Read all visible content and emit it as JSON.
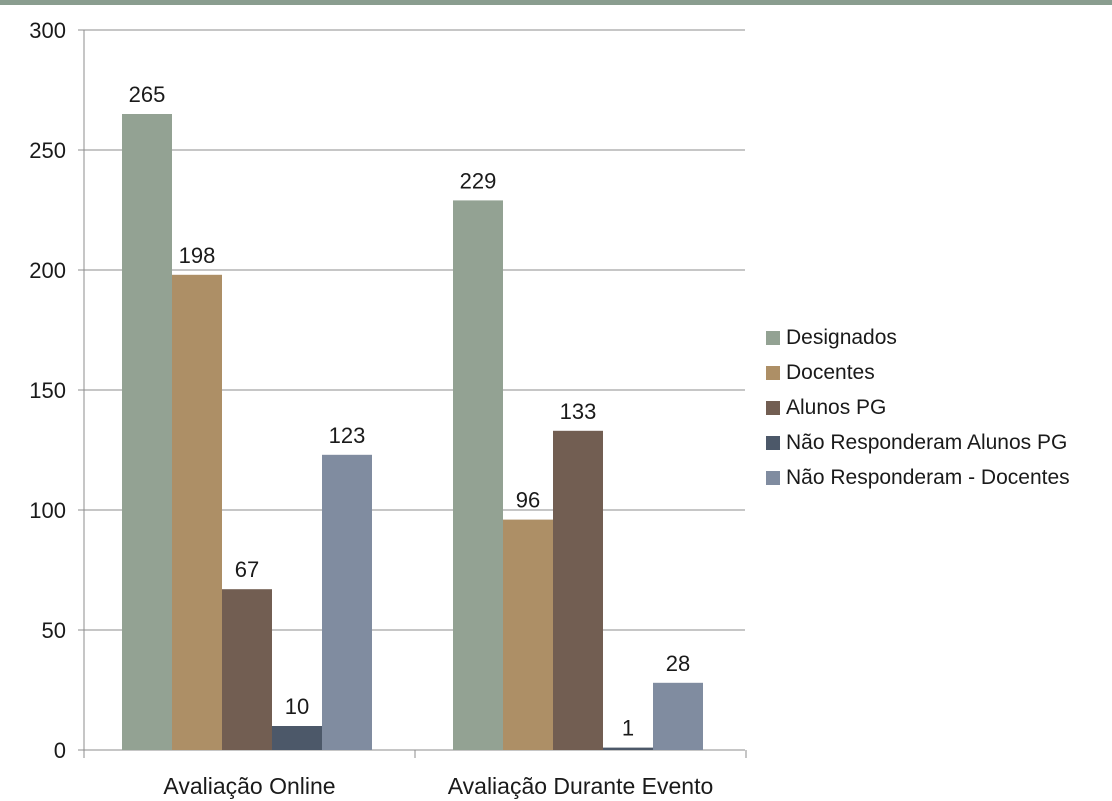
{
  "colors": {
    "band": "#8a9d8f",
    "designados": "#93a293",
    "docentes": "#ad8f66",
    "alunos": "#725e52",
    "nao_alunos": "#4c5869",
    "nao_docentes": "#808ca0",
    "grid": "#8c8c8c",
    "text": "#1a1a1a"
  },
  "chart_data": {
    "type": "bar",
    "title": "",
    "xlabel": "",
    "ylabel": "",
    "categories": [
      "Avaliação Online",
      "Avaliação Durante Evento"
    ],
    "ylim": [
      0,
      300
    ],
    "yticks": [
      "0",
      "50",
      "100",
      "150",
      "200",
      "250",
      "300"
    ],
    "grid": true,
    "legend_position": "right",
    "series": [
      {
        "name": "Designados",
        "values": [
          265,
          229
        ],
        "color_key": "designados"
      },
      {
        "name": "Docentes",
        "values": [
          198,
          96
        ],
        "color_key": "docentes"
      },
      {
        "name": "Alunos PG",
        "values": [
          67,
          133
        ],
        "color_key": "alunos"
      },
      {
        "name": "Não Responderam Alunos PG",
        "values": [
          10,
          1
        ],
        "color_key": "nao_alunos"
      },
      {
        "name": "Não Responderam - Docentes",
        "values": [
          123,
          28
        ],
        "color_key": "nao_docentes"
      }
    ]
  }
}
